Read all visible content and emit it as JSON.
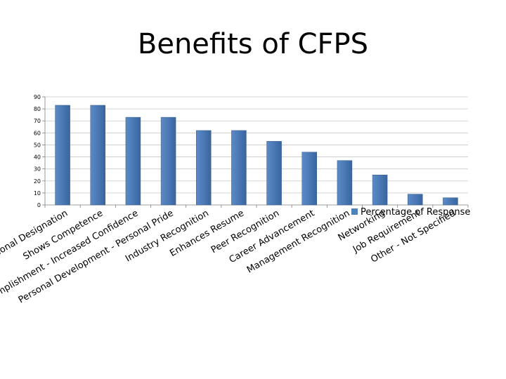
{
  "title": "Benefits of CFPS",
  "chart_data": {
    "type": "bar",
    "title": "Benefits of CFPS",
    "xlabel": "",
    "ylabel": "",
    "ylim": [
      0,
      90
    ],
    "yticks": [
      0,
      10,
      20,
      30,
      40,
      50,
      60,
      70,
      80,
      90
    ],
    "grid": true,
    "legend_position": "right",
    "categories": [
      "Professional Designation",
      "Shows Competence",
      "Sense of Accomplishment - Increased Confidence",
      "Personal Development - Personal Pride",
      "Industry Recognition",
      "Enhances Resume",
      "Peer Recognition",
      "Career Advancement",
      "Management Recognition",
      "Networking",
      "Job Requirement",
      "Other - Not Specified"
    ],
    "series": [
      {
        "name": "Percentage of Response",
        "color": "#4F81BD",
        "values": [
          83,
          83,
          73,
          73,
          62,
          62,
          53,
          44,
          37,
          25,
          9,
          6
        ]
      }
    ]
  }
}
